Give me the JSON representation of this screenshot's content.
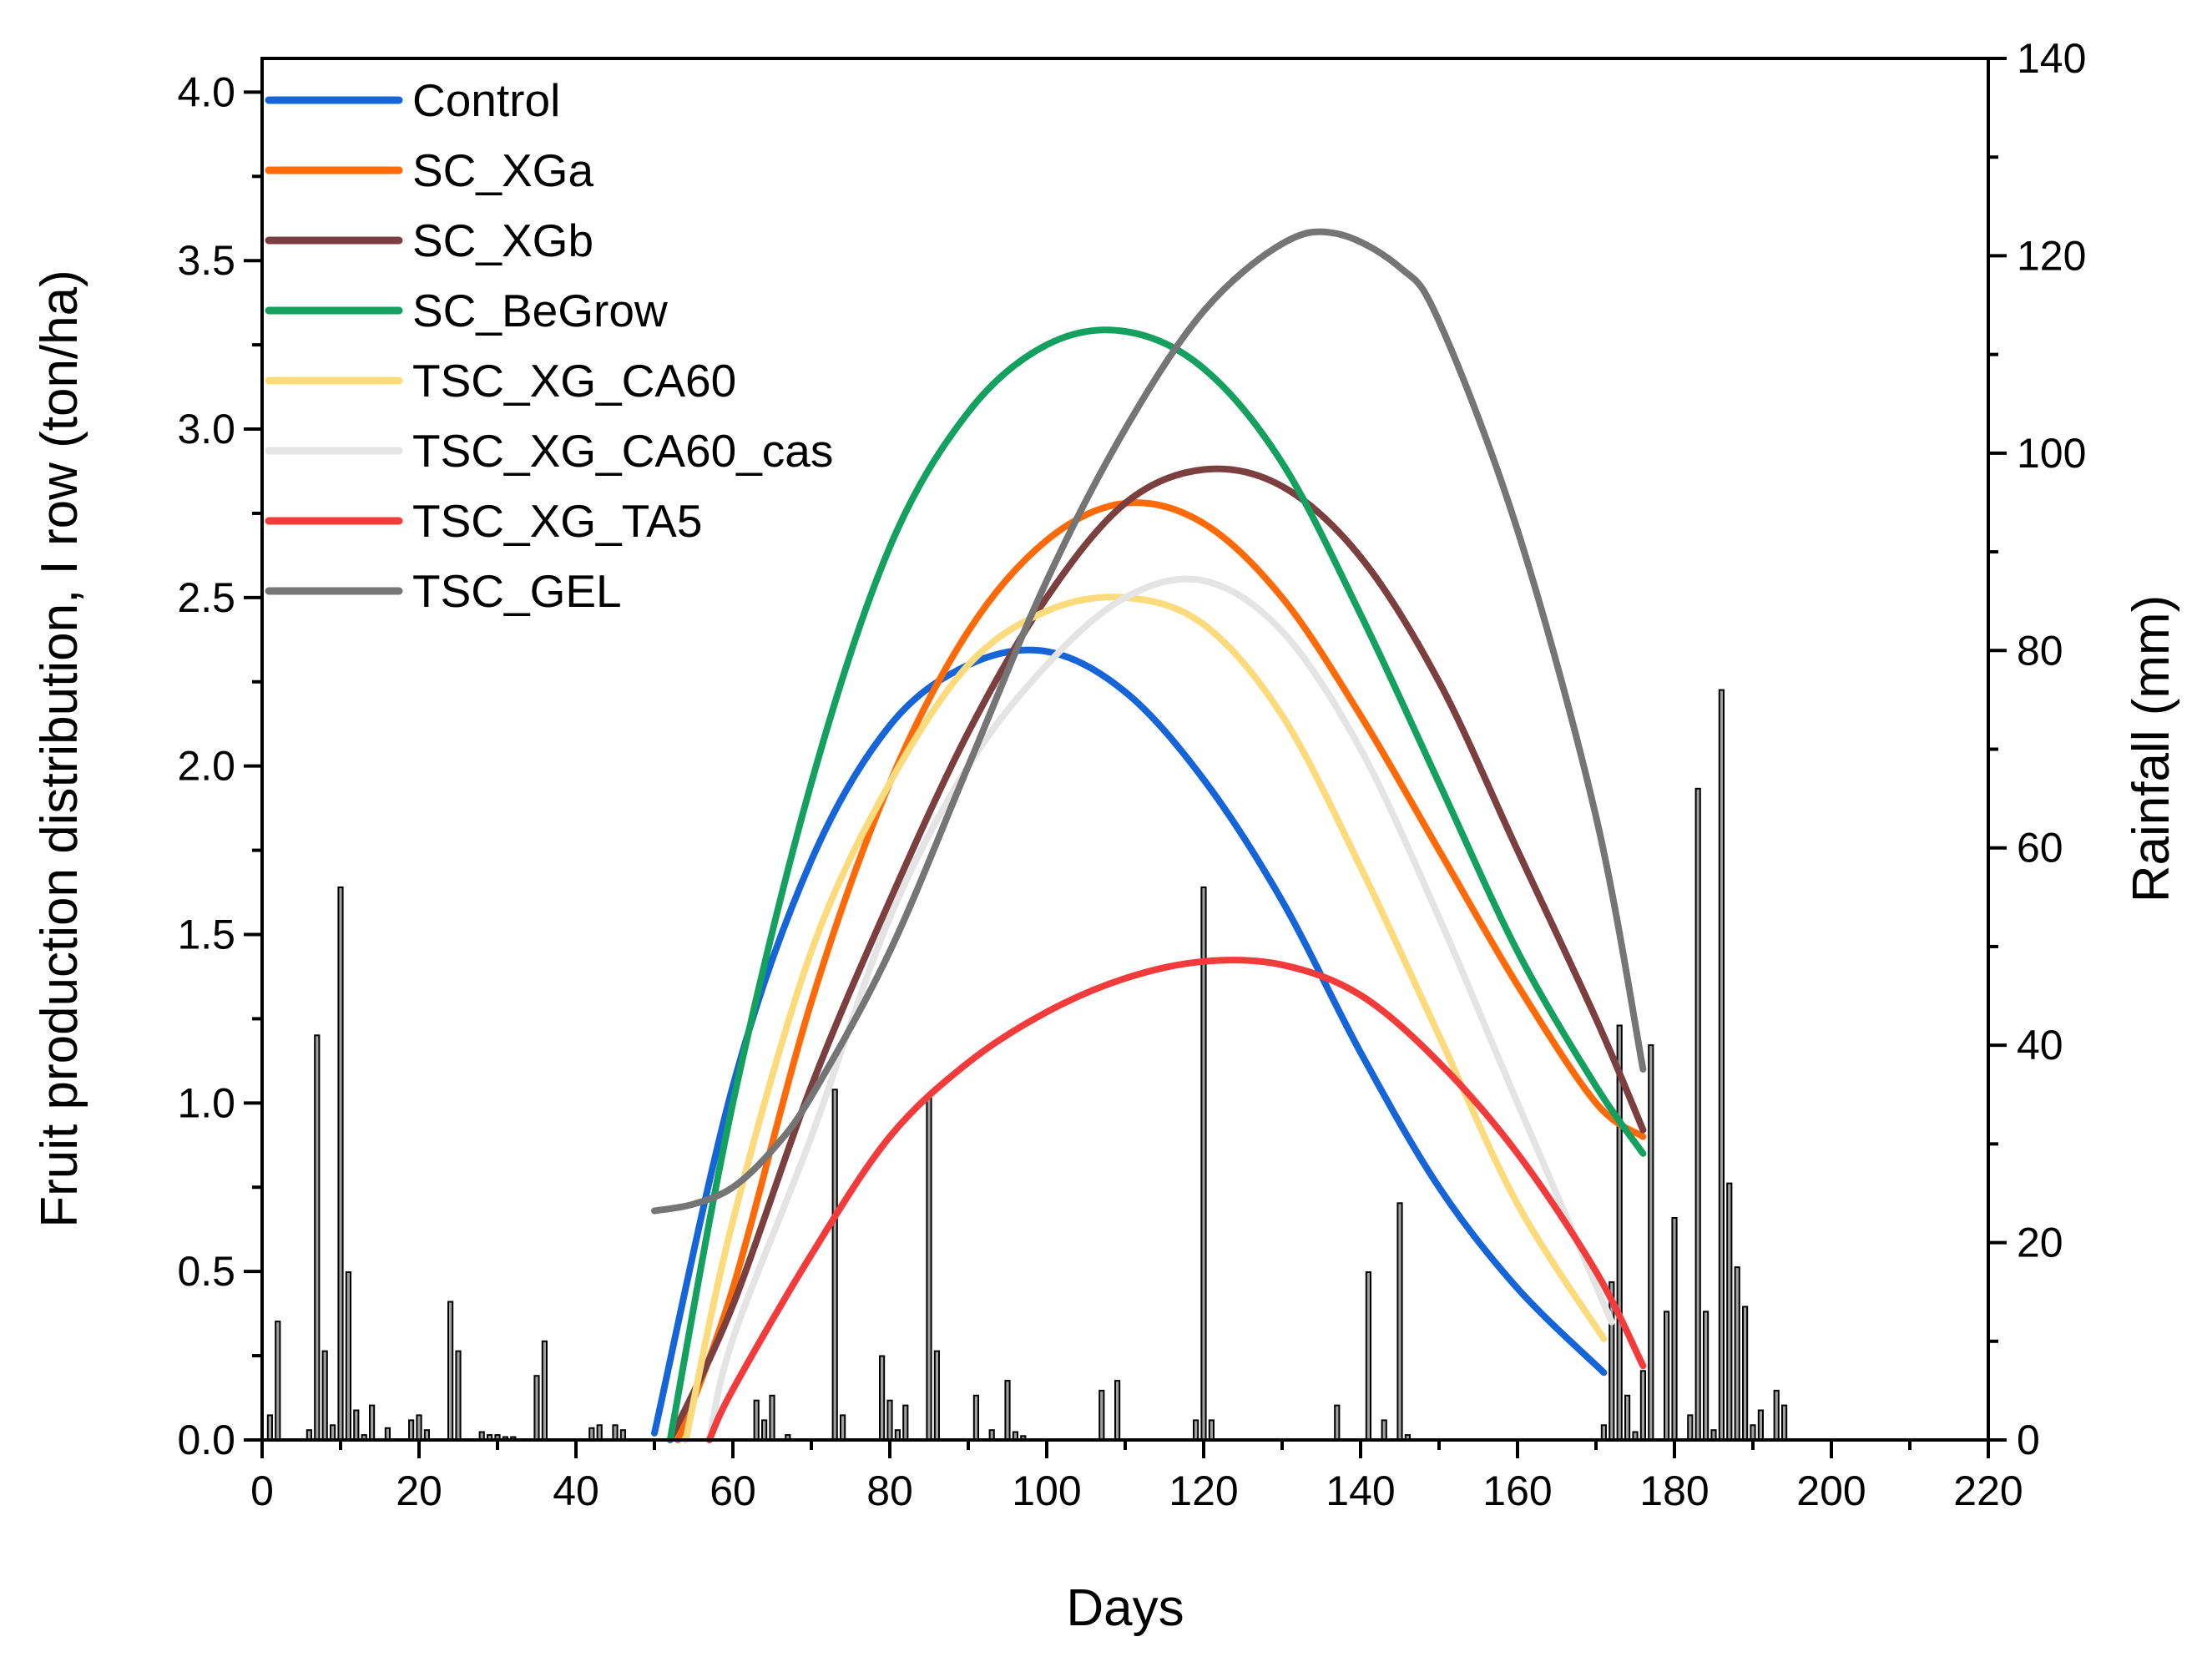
{
  "chart_data": {
    "type": "line",
    "xlabel": "Days",
    "ylabel": "Fruit production distribution, I row (ton/ha)",
    "y2label": "Rainfall (mm)",
    "xlim": [
      0,
      220
    ],
    "ylim": [
      0,
      4.1
    ],
    "y2lim": [
      0,
      140
    ],
    "xticks": [
      "0",
      "20",
      "40",
      "60",
      "80",
      "100",
      "120",
      "140",
      "160",
      "180",
      "200",
      "220"
    ],
    "xtick_values": [
      0,
      20,
      40,
      60,
      80,
      100,
      120,
      140,
      160,
      180,
      200,
      220
    ],
    "yticks": [
      "0.0",
      "0.5",
      "1.0",
      "1.5",
      "2.0",
      "2.5",
      "3.0",
      "3.5",
      "4.0"
    ],
    "ytick_values": [
      0,
      0.5,
      1.0,
      1.5,
      2.0,
      2.5,
      3.0,
      3.5,
      4.0
    ],
    "y2ticks": [
      "0",
      "20",
      "40",
      "60",
      "80",
      "100",
      "120",
      "140"
    ],
    "y2tick_values": [
      0,
      20,
      40,
      60,
      80,
      100,
      120,
      140
    ],
    "legend_position": "top-left",
    "series": [
      {
        "name": "Control",
        "color": "#1565d8",
        "x": [
          50,
          60,
          70,
          80,
          90,
          100,
          110,
          120,
          130,
          140,
          150,
          160,
          171
        ],
        "y": [
          0.02,
          1.05,
          1.72,
          2.12,
          2.3,
          2.34,
          2.22,
          1.96,
          1.6,
          1.15,
          0.75,
          0.45,
          0.2
        ]
      },
      {
        "name": "SC_XGa",
        "color": "#ff6a08",
        "x": [
          53,
          60,
          70,
          80,
          90,
          100,
          110,
          120,
          130,
          140,
          150,
          160,
          170,
          176
        ],
        "y": [
          0.0,
          0.45,
          1.3,
          1.95,
          2.4,
          2.67,
          2.78,
          2.72,
          2.5,
          2.15,
          1.75,
          1.35,
          1.0,
          0.9
        ]
      },
      {
        "name": "SC_XGb",
        "color": "#7b3f3f",
        "x": [
          52,
          60,
          70,
          80,
          90,
          100,
          110,
          120,
          130,
          140,
          150,
          160,
          170,
          176
        ],
        "y": [
          0.0,
          0.4,
          1.05,
          1.6,
          2.1,
          2.5,
          2.78,
          2.88,
          2.83,
          2.62,
          2.25,
          1.75,
          1.25,
          0.92
        ]
      },
      {
        "name": "SC_BeGrow",
        "color": "#14a15f",
        "x": [
          52,
          60,
          70,
          80,
          90,
          100,
          110,
          120,
          130,
          140,
          150,
          160,
          170,
          176
        ],
        "y": [
          0.0,
          1.0,
          1.95,
          2.65,
          3.05,
          3.25,
          3.29,
          3.18,
          2.9,
          2.45,
          1.95,
          1.45,
          1.05,
          0.85
        ]
      },
      {
        "name": "TSC_XG_CA60",
        "color": "#fbdb7c",
        "x": [
          54,
          60,
          70,
          80,
          90,
          100,
          110,
          120,
          130,
          140,
          150,
          160,
          171
        ],
        "y": [
          0.0,
          0.65,
          1.45,
          1.95,
          2.3,
          2.46,
          2.5,
          2.42,
          2.15,
          1.7,
          1.2,
          0.7,
          0.3
        ]
      },
      {
        "name": "TSC_XG_CA60_cas",
        "color": "#e4e4e4",
        "x": [
          57,
          60,
          70,
          80,
          90,
          100,
          110,
          120,
          130,
          140,
          150,
          160,
          172
        ],
        "y": [
          0.0,
          0.3,
          0.9,
          1.55,
          2.0,
          2.3,
          2.5,
          2.55,
          2.4,
          2.05,
          1.55,
          1.0,
          0.35
        ]
      },
      {
        "name": "TSC_XG_TA5",
        "color": "#f33b3b",
        "x": [
          57,
          60,
          70,
          80,
          90,
          100,
          110,
          120,
          130,
          140,
          150,
          160,
          170,
          176
        ],
        "y": [
          0.0,
          0.15,
          0.55,
          0.9,
          1.12,
          1.27,
          1.37,
          1.42,
          1.41,
          1.32,
          1.12,
          0.85,
          0.5,
          0.22
        ]
      },
      {
        "name": "TSC_GEL",
        "color": "#757575",
        "x": [
          50,
          55,
          60,
          65,
          70,
          80,
          90,
          100,
          110,
          120,
          130,
          137,
          145,
          150,
          160,
          170,
          176
        ],
        "y": [
          0.68,
          0.7,
          0.75,
          0.86,
          1.02,
          1.45,
          2.0,
          2.55,
          3.0,
          3.35,
          3.55,
          3.58,
          3.48,
          3.32,
          2.7,
          1.85,
          1.1
        ]
      }
    ],
    "rainfall": {
      "name": "Rainfall",
      "color": "#a0a0a0",
      "days": [
        1,
        2,
        6,
        7,
        8,
        9,
        10,
        11,
        12,
        13,
        14,
        16,
        19,
        20,
        21,
        24,
        25,
        28,
        29,
        30,
        31,
        32,
        35,
        36,
        42,
        43,
        45,
        46,
        63,
        64,
        65,
        67,
        73,
        74,
        79,
        80,
        81,
        82,
        85,
        86,
        91,
        93,
        95,
        96,
        97,
        107,
        109,
        119,
        120,
        121,
        137,
        141,
        143,
        145,
        146,
        171,
        172,
        173,
        174,
        175,
        176,
        177,
        179,
        180,
        182,
        183,
        184,
        185,
        186,
        187,
        188,
        189,
        190,
        191,
        193,
        194
      ],
      "mm": [
        2.5,
        12,
        1,
        41,
        9,
        1.5,
        56,
        17,
        3,
        0.5,
        3.5,
        1.2,
        2,
        2.5,
        1,
        14,
        9,
        0.8,
        0.5,
        0.5,
        0.3,
        0.3,
        6.5,
        10,
        1.2,
        1.5,
        1.5,
        1,
        4,
        2,
        4.5,
        0.5,
        35.5,
        2.5,
        8.5,
        4,
        1,
        3.5,
        35,
        9,
        4.5,
        1,
        6,
        0.8,
        0.4,
        5,
        6,
        2,
        56,
        2,
        3.5,
        17,
        2,
        24,
        0.5,
        1.5,
        16,
        42,
        4.5,
        0.8,
        7,
        40,
        13,
        22.5,
        2.5,
        66,
        13,
        1,
        76,
        26,
        17.5,
        13.5,
        1.5,
        3,
        5,
        3.5
      ]
    }
  }
}
